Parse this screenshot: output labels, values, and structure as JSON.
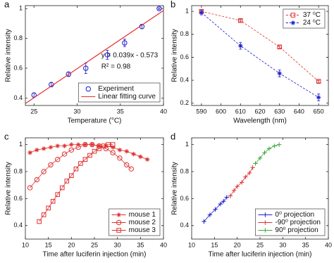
{
  "chart_data": [
    {
      "panel_label": "a",
      "type": "scatter",
      "xlabel": "Temperature (°C)",
      "ylabel": "Relative intensity",
      "xlim": [
        24,
        40
      ],
      "xticks": [
        25,
        30,
        35,
        40
      ],
      "ylim": [
        0.35,
        1.02
      ],
      "yticks": [
        0.4,
        0.6,
        0.8,
        1
      ],
      "annotations": [
        "y = 0.039x - 0.573",
        "R² = 0.98"
      ],
      "legend": "lower right",
      "series": [
        {
          "name": "Experiment",
          "color": "#1a1acc",
          "marker": "circle",
          "line": "none",
          "x": [
            25,
            27,
            29,
            31,
            33.5,
            35.5,
            37.5,
            39.5
          ],
          "values": [
            0.42,
            0.49,
            0.56,
            0.6,
            0.69,
            0.77,
            0.88,
            1.0
          ],
          "errors": [
            0.015,
            0.015,
            0.015,
            0.035,
            0.03,
            0.025,
            0.015,
            0.005
          ]
        },
        {
          "name": "Linear fitting curve",
          "color": "#e03030",
          "marker": "none",
          "line": "solid",
          "x": [
            24,
            40
          ],
          "values": [
            0.363,
            0.987
          ]
        }
      ]
    },
    {
      "panel_label": "b",
      "type": "line",
      "xlabel": "Wavelength (nm)",
      "ylabel": "Relative intensity",
      "xlim": [
        585,
        655
      ],
      "xticks": [
        590,
        600,
        610,
        620,
        630,
        640,
        650
      ],
      "ylim": [
        0.18,
        1.05
      ],
      "yticks": [
        0.2,
        0.4,
        0.6,
        0.8,
        1
      ],
      "legend": "upper right",
      "series": [
        {
          "name": "37 ⁰C",
          "color": "#e03030",
          "marker": "square",
          "line": "dashed",
          "x": [
            590,
            610,
            630,
            650
          ],
          "values": [
            1.0,
            0.92,
            0.69,
            0.39
          ],
          "errors": [
            0.01,
            0.01,
            0.01,
            0.01
          ]
        },
        {
          "name": "24 ⁰C",
          "color": "#1a1acc",
          "marker": "asterisk",
          "line": "dashed",
          "x": [
            590,
            610,
            630,
            650
          ],
          "values": [
            0.99,
            0.7,
            0.46,
            0.25
          ],
          "errors": [
            0.02,
            0.03,
            0.03,
            0.03
          ]
        }
      ]
    },
    {
      "panel_label": "c",
      "type": "line",
      "xlabel": "Time after luciferin injection (min)",
      "ylabel": "Relative intensity",
      "xlim": [
        10,
        40
      ],
      "xticks": [
        10,
        15,
        20,
        25,
        30,
        35,
        40
      ],
      "ylim": [
        0.3,
        1.05
      ],
      "yticks": [
        0.4,
        0.6,
        0.8,
        1
      ],
      "legend": "lower right",
      "series": [
        {
          "name": "mouse 1",
          "color": "#e03030",
          "marker": "asterisk",
          "line": "solid",
          "x": [
            11,
            12.5,
            14,
            15.5,
            17,
            18.5,
            20,
            21.5,
            23,
            24.5,
            26,
            27.5,
            29,
            30.5,
            32,
            33.5,
            35,
            36.5
          ],
          "values": [
            0.94,
            0.96,
            0.97,
            0.98,
            0.99,
            0.99,
            1.0,
            1.0,
            1.0,
            1.0,
            0.99,
            0.99,
            0.98,
            0.96,
            0.95,
            0.93,
            0.91,
            0.89
          ]
        },
        {
          "name": "mouse 2",
          "color": "#e03030",
          "marker": "circle",
          "line": "solid",
          "x": [
            11,
            12.5,
            14,
            15.5,
            17,
            18.5,
            20,
            21.5,
            23,
            24.5,
            26,
            27.5,
            29,
            30.5,
            32,
            33
          ],
          "values": [
            0.68,
            0.74,
            0.8,
            0.85,
            0.89,
            0.93,
            0.96,
            0.98,
            1.0,
            1.0,
            0.99,
            0.97,
            0.94,
            0.9,
            0.85,
            0.82
          ]
        },
        {
          "name": "mouse 3",
          "color": "#e03030",
          "marker": "square",
          "line": "solid",
          "x": [
            13,
            14,
            15,
            16,
            17,
            18,
            19,
            20,
            21,
            22,
            23,
            24,
            25,
            26,
            27,
            28,
            29
          ],
          "values": [
            0.43,
            0.48,
            0.53,
            0.58,
            0.63,
            0.68,
            0.73,
            0.77,
            0.82,
            0.86,
            0.89,
            0.92,
            0.95,
            0.97,
            0.99,
            1.0,
            1.0
          ]
        }
      ]
    },
    {
      "panel_label": "d",
      "type": "line",
      "xlabel": "Time after luciferin injection (min)",
      "ylabel": "Relative intensity",
      "xlim": [
        10,
        40
      ],
      "xticks": [
        10,
        15,
        20,
        25,
        30,
        35,
        40
      ],
      "ylim": [
        0.3,
        1.05
      ],
      "yticks": [
        0.4,
        0.6,
        0.8,
        1
      ],
      "legend": "lower right",
      "series": [
        {
          "name": "0⁰ projection",
          "color": "#1a1acc",
          "marker": "plus",
          "line": "solid",
          "x": [
            12.7,
            14,
            15.2,
            16.3,
            17,
            17.7
          ],
          "values": [
            0.43,
            0.48,
            0.52,
            0.56,
            0.58,
            0.61
          ]
        },
        {
          "name": "-90⁰ projection",
          "color": "#e03030",
          "marker": "plus",
          "line": "solid",
          "x": [
            18.5,
            19.3,
            20,
            21,
            21.8,
            22.7,
            23.4
          ],
          "values": [
            0.62,
            0.66,
            0.69,
            0.72,
            0.76,
            0.79,
            0.83
          ]
        },
        {
          "name": "90⁰ projection",
          "color": "#3aa63a",
          "marker": "plus",
          "line": "solid",
          "x": [
            24,
            25,
            26,
            27,
            28.2,
            29.2
          ],
          "values": [
            0.86,
            0.9,
            0.94,
            0.97,
            0.99,
            1.0
          ]
        }
      ]
    }
  ]
}
